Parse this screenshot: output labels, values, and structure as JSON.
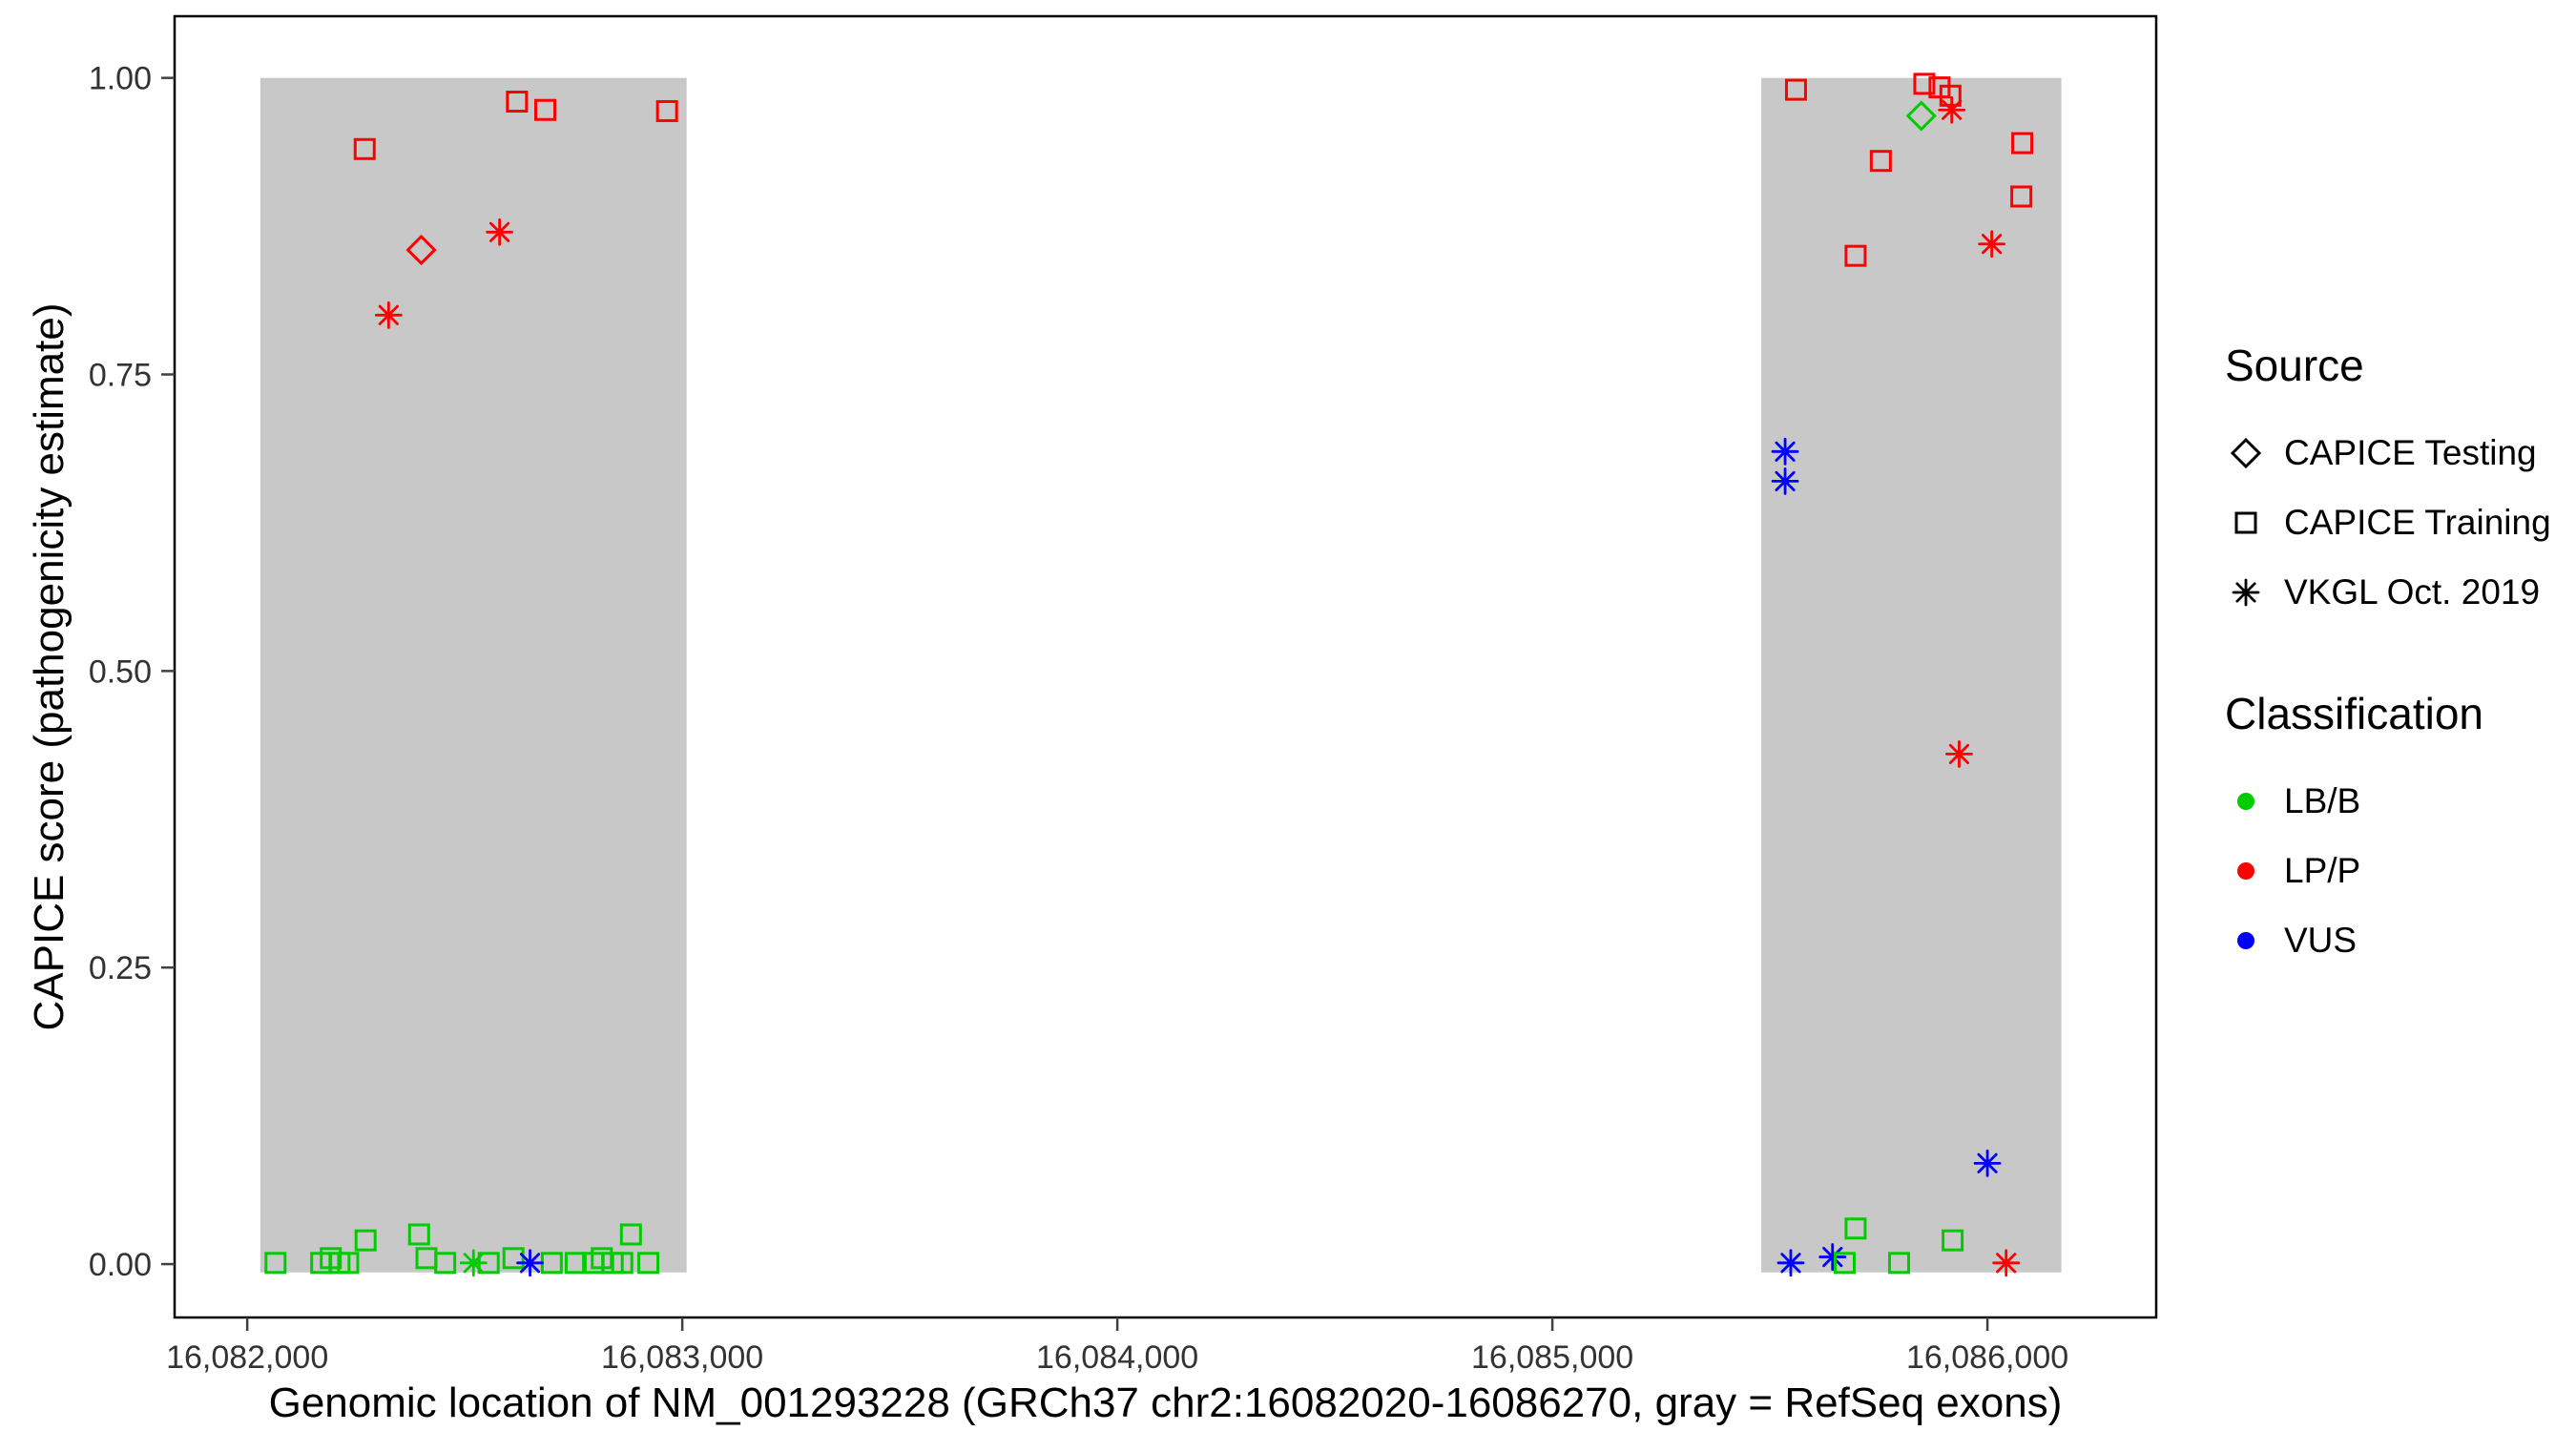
{
  "chart_data": {
    "type": "scatter",
    "title": "",
    "xlabel": "Genomic location of NM_001293228 (GRCh37 chr2:16082020-16086270, gray = RefSeq exons)",
    "ylabel": "CAPICE score (pathogenicity estimate)",
    "x_domain": [
      16081833,
      16086388
    ],
    "y_domain": [
      -0.045,
      1.052
    ],
    "x_ticks": [
      {
        "value": 16082000,
        "label": "16,082,000"
      },
      {
        "value": 16083000,
        "label": "16,083,000"
      },
      {
        "value": 16084000,
        "label": "16,084,000"
      },
      {
        "value": 16085000,
        "label": "16,085,000"
      },
      {
        "value": 16086000,
        "label": "16,086,000"
      }
    ],
    "y_ticks": [
      {
        "value": 0.0,
        "label": "0.00"
      },
      {
        "value": 0.25,
        "label": "0.25"
      },
      {
        "value": 0.5,
        "label": "0.50"
      },
      {
        "value": 0.75,
        "label": "0.75"
      },
      {
        "value": 1.0,
        "label": "1.00"
      }
    ],
    "exon_color": "#c8c8c8",
    "exons": [
      {
        "start": 16082030,
        "end": 16083010,
        "y0": -0.007,
        "y1": 1.0
      },
      {
        "start": 16085480,
        "end": 16086170,
        "y0": -0.007,
        "y1": 1.0
      }
    ],
    "colors": {
      "LB/B": "#00cc00",
      "LP/P": "#ff0000",
      "VUS": "#0000ff"
    },
    "shapes": {
      "testing": "diamond",
      "training": "square",
      "vkgl": "asterisk"
    },
    "points": [
      {
        "x": 16082270,
        "y": 0.94,
        "src": "training",
        "cls": "LP/P"
      },
      {
        "x": 16082400,
        "y": 0.855,
        "src": "testing",
        "cls": "LP/P"
      },
      {
        "x": 16082325,
        "y": 0.8,
        "src": "vkgl",
        "cls": "LP/P"
      },
      {
        "x": 16082580,
        "y": 0.87,
        "src": "vkgl",
        "cls": "LP/P"
      },
      {
        "x": 16082620,
        "y": 0.98,
        "src": "training",
        "cls": "LP/P"
      },
      {
        "x": 16082685,
        "y": 0.973,
        "src": "training",
        "cls": "LP/P"
      },
      {
        "x": 16082965,
        "y": 0.972,
        "src": "training",
        "cls": "LP/P"
      },
      {
        "x": 16082065,
        "y": 0.001,
        "src": "training",
        "cls": "LB/B"
      },
      {
        "x": 16082170,
        "y": 0.001,
        "src": "training",
        "cls": "LB/B"
      },
      {
        "x": 16082192,
        "y": 0.005,
        "src": "training",
        "cls": "LB/B"
      },
      {
        "x": 16082212,
        "y": 0.001,
        "src": "training",
        "cls": "LB/B"
      },
      {
        "x": 16082232,
        "y": 0.001,
        "src": "training",
        "cls": "LB/B"
      },
      {
        "x": 16082272,
        "y": 0.02,
        "src": "training",
        "cls": "LB/B"
      },
      {
        "x": 16082395,
        "y": 0.025,
        "src": "training",
        "cls": "LB/B"
      },
      {
        "x": 16082412,
        "y": 0.005,
        "src": "training",
        "cls": "LB/B"
      },
      {
        "x": 16082455,
        "y": 0.001,
        "src": "training",
        "cls": "LB/B"
      },
      {
        "x": 16082555,
        "y": 0.001,
        "src": "training",
        "cls": "LB/B"
      },
      {
        "x": 16082612,
        "y": 0.005,
        "src": "training",
        "cls": "LB/B"
      },
      {
        "x": 16082700,
        "y": 0.001,
        "src": "training",
        "cls": "LB/B"
      },
      {
        "x": 16082755,
        "y": 0.001,
        "src": "training",
        "cls": "LB/B"
      },
      {
        "x": 16082795,
        "y": 0.001,
        "src": "training",
        "cls": "LB/B"
      },
      {
        "x": 16082815,
        "y": 0.005,
        "src": "training",
        "cls": "LB/B"
      },
      {
        "x": 16082840,
        "y": 0.001,
        "src": "training",
        "cls": "LB/B"
      },
      {
        "x": 16082862,
        "y": 0.001,
        "src": "training",
        "cls": "LB/B"
      },
      {
        "x": 16082882,
        "y": 0.025,
        "src": "training",
        "cls": "LB/B"
      },
      {
        "x": 16082922,
        "y": 0.001,
        "src": "training",
        "cls": "LB/B"
      },
      {
        "x": 16082520,
        "y": 0.001,
        "src": "vkgl",
        "cls": "LB/B"
      },
      {
        "x": 16082650,
        "y": 0.001,
        "src": "vkgl",
        "cls": "VUS"
      },
      {
        "x": 16085560,
        "y": 0.99,
        "src": "training",
        "cls": "LP/P"
      },
      {
        "x": 16085855,
        "y": 0.995,
        "src": "training",
        "cls": "LP/P"
      },
      {
        "x": 16085890,
        "y": 0.992,
        "src": "training",
        "cls": "LP/P"
      },
      {
        "x": 16085848,
        "y": 0.968,
        "src": "testing",
        "cls": "LB/B"
      },
      {
        "x": 16085915,
        "y": 0.985,
        "src": "training",
        "cls": "LP/P"
      },
      {
        "x": 16085918,
        "y": 0.973,
        "src": "vkgl",
        "cls": "LP/P"
      },
      {
        "x": 16085755,
        "y": 0.93,
        "src": "training",
        "cls": "LP/P"
      },
      {
        "x": 16085697,
        "y": 0.85,
        "src": "training",
        "cls": "LP/P"
      },
      {
        "x": 16086080,
        "y": 0.945,
        "src": "training",
        "cls": "LP/P"
      },
      {
        "x": 16086078,
        "y": 0.9,
        "src": "training",
        "cls": "LP/P"
      },
      {
        "x": 16086010,
        "y": 0.86,
        "src": "vkgl",
        "cls": "LP/P"
      },
      {
        "x": 16085535,
        "y": 0.685,
        "src": "vkgl",
        "cls": "VUS"
      },
      {
        "x": 16085535,
        "y": 0.66,
        "src": "vkgl",
        "cls": "VUS"
      },
      {
        "x": 16085935,
        "y": 0.43,
        "src": "vkgl",
        "cls": "LP/P"
      },
      {
        "x": 16086000,
        "y": 0.085,
        "src": "vkgl",
        "cls": "VUS"
      },
      {
        "x": 16085697,
        "y": 0.03,
        "src": "training",
        "cls": "LB/B"
      },
      {
        "x": 16085920,
        "y": 0.02,
        "src": "training",
        "cls": "LB/B"
      },
      {
        "x": 16085548,
        "y": 0.001,
        "src": "vkgl",
        "cls": "VUS"
      },
      {
        "x": 16085644,
        "y": 0.006,
        "src": "vkgl",
        "cls": "VUS"
      },
      {
        "x": 16085672,
        "y": 0.001,
        "src": "training",
        "cls": "LB/B"
      },
      {
        "x": 16085797,
        "y": 0.001,
        "src": "training",
        "cls": "LB/B"
      },
      {
        "x": 16086043,
        "y": 0.001,
        "src": "vkgl",
        "cls": "LP/P"
      }
    ]
  },
  "axes": {
    "x_title": "Genomic location of NM_001293228 (GRCh37 chr2:16082020-16086270, gray = RefSeq exons)",
    "y_title": "CAPICE score (pathogenicity estimate)"
  },
  "legend": {
    "source_title": "Source",
    "source_items": [
      {
        "label": "CAPICE Testing",
        "shape": "diamond"
      },
      {
        "label": "CAPICE Training",
        "shape": "square"
      },
      {
        "label": "VKGL Oct. 2019",
        "shape": "asterisk"
      }
    ],
    "classification_title": "Classification",
    "classification_items": [
      {
        "label": "LB/B",
        "color": "#00cc00"
      },
      {
        "label": "LP/P",
        "color": "#ff0000"
      },
      {
        "label": "VUS",
        "color": "#0000ff"
      }
    ]
  }
}
